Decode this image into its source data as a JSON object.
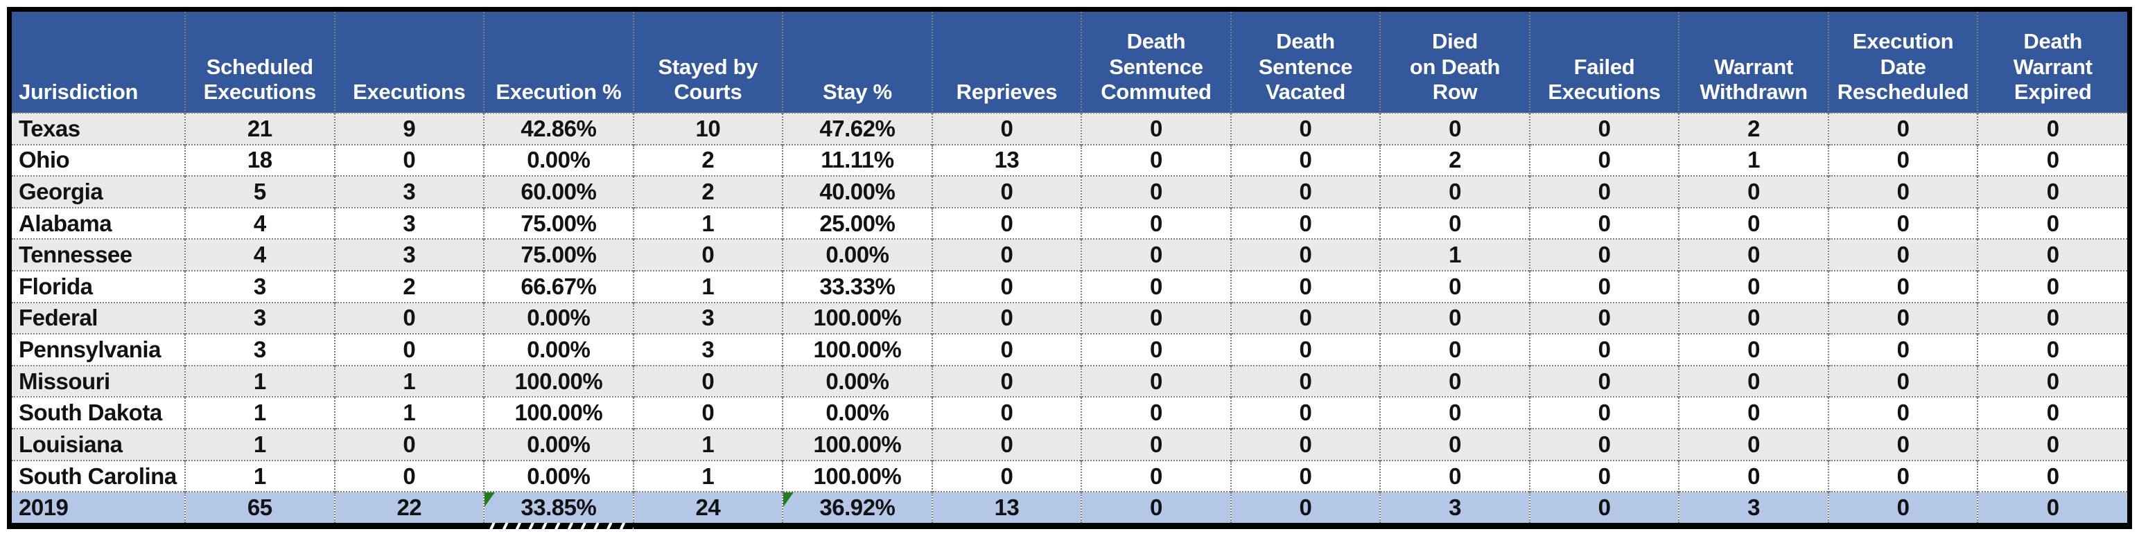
{
  "table": {
    "columns": [
      "Jurisdiction",
      "Scheduled\nExecutions",
      "Executions",
      "Execution %",
      "Stayed by\nCourts",
      "Stay %",
      "Reprieves",
      "Death\nSentence\nCommuted",
      "Death\nSentence\nVacated",
      "Died\non Death\nRow",
      "Failed\nExecutions",
      "Warrant\nWithdrawn",
      "Execution\nDate\nRescheduled",
      "Death\nWarrant\nExpired"
    ],
    "rows": [
      {
        "jurisdiction": "Texas",
        "values": [
          "21",
          "9",
          "42.86%",
          "10",
          "47.62%",
          "0",
          "0",
          "0",
          "0",
          "0",
          "2",
          "0",
          "0"
        ]
      },
      {
        "jurisdiction": "Ohio",
        "values": [
          "18",
          "0",
          "0.00%",
          "2",
          "11.11%",
          "13",
          "0",
          "0",
          "2",
          "0",
          "1",
          "0",
          "0"
        ]
      },
      {
        "jurisdiction": "Georgia",
        "values": [
          "5",
          "3",
          "60.00%",
          "2",
          "40.00%",
          "0",
          "0",
          "0",
          "0",
          "0",
          "0",
          "0",
          "0"
        ]
      },
      {
        "jurisdiction": "Alabama",
        "values": [
          "4",
          "3",
          "75.00%",
          "1",
          "25.00%",
          "0",
          "0",
          "0",
          "0",
          "0",
          "0",
          "0",
          "0"
        ]
      },
      {
        "jurisdiction": "Tennessee",
        "values": [
          "4",
          "3",
          "75.00%",
          "0",
          "0.00%",
          "0",
          "0",
          "0",
          "1",
          "0",
          "0",
          "0",
          "0"
        ]
      },
      {
        "jurisdiction": "Florida",
        "values": [
          "3",
          "2",
          "66.67%",
          "1",
          "33.33%",
          "0",
          "0",
          "0",
          "0",
          "0",
          "0",
          "0",
          "0"
        ]
      },
      {
        "jurisdiction": "Federal",
        "values": [
          "3",
          "0",
          "0.00%",
          "3",
          "100.00%",
          "0",
          "0",
          "0",
          "0",
          "0",
          "0",
          "0",
          "0"
        ]
      },
      {
        "jurisdiction": "Pennsylvania",
        "values": [
          "3",
          "0",
          "0.00%",
          "3",
          "100.00%",
          "0",
          "0",
          "0",
          "0",
          "0",
          "0",
          "0",
          "0"
        ]
      },
      {
        "jurisdiction": "Missouri",
        "values": [
          "1",
          "1",
          "100.00%",
          "0",
          "0.00%",
          "0",
          "0",
          "0",
          "0",
          "0",
          "0",
          "0",
          "0"
        ]
      },
      {
        "jurisdiction": "South Dakota",
        "values": [
          "1",
          "1",
          "100.00%",
          "0",
          "0.00%",
          "0",
          "0",
          "0",
          "0",
          "0",
          "0",
          "0",
          "0"
        ]
      },
      {
        "jurisdiction": "Louisiana",
        "values": [
          "1",
          "0",
          "0.00%",
          "1",
          "100.00%",
          "0",
          "0",
          "0",
          "0",
          "0",
          "0",
          "0",
          "0"
        ]
      },
      {
        "jurisdiction": "South Carolina",
        "values": [
          "1",
          "0",
          "0.00%",
          "1",
          "100.00%",
          "0",
          "0",
          "0",
          "0",
          "0",
          "0",
          "0",
          "0"
        ]
      }
    ],
    "total_row": {
      "jurisdiction": "2019",
      "values": [
        "65",
        "22",
        "33.85%",
        "24",
        "36.92%",
        "13",
        "0",
        "0",
        "3",
        "0",
        "3",
        "0",
        "0"
      ],
      "flagged_value_indices": [
        2,
        4
      ]
    }
  },
  "colors": {
    "header_bg": "#33589B",
    "header_text": "#FFFFFF",
    "total_row_bg": "#B4C7E7",
    "alt_row_bg": "#E9E9E9",
    "row_bg": "#FFFFFF",
    "body_text": "#121212",
    "grid_line": "#7D7D7D",
    "outer_border": "#000000",
    "error_flag_green": "#1E7E1E"
  }
}
